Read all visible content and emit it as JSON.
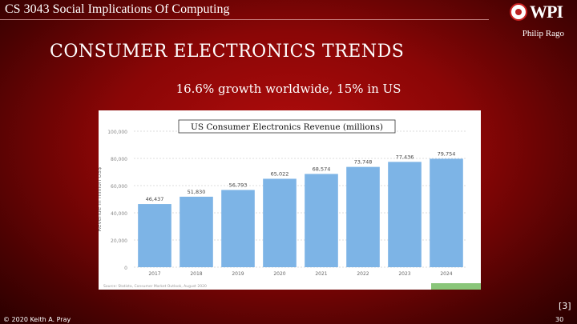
{
  "header": {
    "course": "CS 3043 Social Implications Of Computing",
    "logo_text": "WPI",
    "presenter": "Philip Rago"
  },
  "slide": {
    "title": "CONSUMER ELECTRONICS TRENDS",
    "subtitle": "16.6% growth worldwide, 15% in US",
    "citation": "[3]"
  },
  "footer": {
    "copyright": "© 2020 Keith A. Pray",
    "page_number": "30"
  },
  "colors": {
    "bar": "#7db4e6",
    "background": "#8a0606"
  },
  "chart_data": {
    "type": "bar",
    "title": "US Consumer Electronics Revenue (millions)",
    "ylabel": "Revenue in million US$",
    "categories": [
      "2017",
      "2018",
      "2019",
      "2020",
      "2021",
      "2022",
      "2023",
      "2024"
    ],
    "values": [
      46437,
      51830,
      56793,
      65022,
      68574,
      73748,
      77436,
      79754
    ],
    "value_labels": [
      "46,437",
      "51,830",
      "56,793",
      "65,022",
      "68,574",
      "73,748",
      "77,436",
      "79,754"
    ],
    "yticks": [
      0,
      20000,
      40000,
      60000,
      80000,
      100000
    ],
    "ytick_labels": [
      "0",
      "20,000",
      "40,000",
      "60,000",
      "80,000",
      "100,000"
    ],
    "ylim": [
      0,
      100000
    ],
    "source": "Source: Statista, Consumer Market Outlook, August 2020"
  }
}
